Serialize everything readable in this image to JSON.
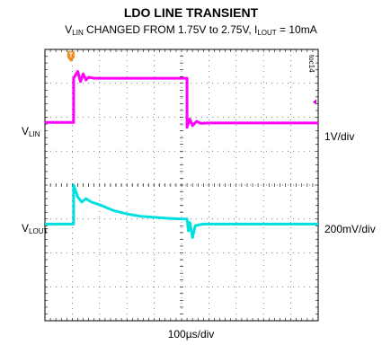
{
  "chart_data": {
    "type": "line",
    "title": "LDO LINE TRANSIENT",
    "subtitle": {
      "v": "V",
      "v_sub": "LIN",
      "mid": " CHANGED FROM 1.75V to 2.75V, I",
      "i_sub": "LOUT",
      "end": " = 10mA"
    },
    "chart_id": "toc14",
    "xlabel": "100µs/div",
    "x_divisions": 10,
    "y_divisions": 8,
    "grid": true,
    "series": [
      {
        "name_main": "V",
        "name_sub": "LIN",
        "scale": "1V/div",
        "color": "#ff00ff",
        "unit": "div",
        "x": [
          0,
          1.05,
          1.05,
          1.2,
          1.3,
          1.4,
          1.5,
          1.6,
          1.8,
          5.0,
          5.2,
          5.2,
          5.3,
          5.4,
          5.55,
          5.7,
          6.0,
          10
        ],
        "y": [
          5.85,
          5.85,
          7.15,
          7.35,
          7.05,
          7.28,
          7.1,
          7.18,
          7.15,
          7.15,
          7.15,
          5.7,
          5.95,
          5.75,
          5.88,
          5.82,
          5.83,
          5.83
        ]
      },
      {
        "name_main": "V",
        "name_sub": "LOUT",
        "scale": "200mV/div",
        "color": "#00e0e0",
        "unit": "div",
        "x": [
          0,
          1.05,
          1.05,
          1.2,
          1.35,
          1.5,
          1.7,
          2.0,
          2.5,
          3.0,
          3.5,
          4.0,
          4.5,
          5.0,
          5.2,
          5.25,
          5.3,
          5.4,
          5.5,
          5.6,
          5.8,
          6.0,
          10
        ],
        "y": [
          2.85,
          2.85,
          4.0,
          3.65,
          3.5,
          3.6,
          3.5,
          3.42,
          3.25,
          3.15,
          3.08,
          3.05,
          3.02,
          3.0,
          3.0,
          2.65,
          2.9,
          2.45,
          2.8,
          2.82,
          2.85,
          2.85,
          2.85
        ]
      }
    ],
    "trigger_marker": "T"
  }
}
